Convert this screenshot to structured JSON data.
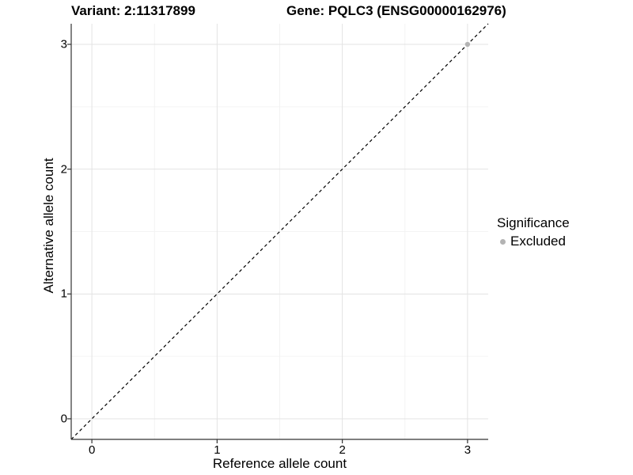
{
  "chart_data": {
    "type": "scatter",
    "title_left": "Variant: 2:11317899",
    "title_right": "Gene: PQLC3 (ENSG00000162976)",
    "xlabel": "Reference allele count",
    "ylabel": "Alternative allele count",
    "xlim": [
      -0.165,
      3.165
    ],
    "ylim": [
      -0.165,
      3.165
    ],
    "xticks": [
      "0",
      "1",
      "2",
      "3"
    ],
    "yticks": [
      "0",
      "1",
      "2",
      "3"
    ],
    "xtick_values": [
      0,
      1,
      2,
      3
    ],
    "ytick_values": [
      0,
      1,
      2,
      3
    ],
    "minor_gridlines": [
      0.5,
      1.5,
      2.5
    ],
    "grid": "on",
    "points": [
      {
        "x": 3,
        "y": 3,
        "significance": "Excluded"
      }
    ],
    "reference_line": {
      "kind": "identity y = x",
      "style": "dashed",
      "extent": "full panel diagonal"
    },
    "legend": {
      "position": "right",
      "title": "Significance",
      "items": [
        {
          "label": "Excluded",
          "color": "#b3b3b3",
          "marker": "circle"
        }
      ]
    }
  },
  "colors": {
    "background": "#ffffff",
    "grid_major": "#e3e3e3",
    "grid_minor": "#f0f0f0",
    "axis_line": "#333333",
    "reference_line": "#000000",
    "excluded_point": "#b3b3b3",
    "text": "#000000"
  }
}
